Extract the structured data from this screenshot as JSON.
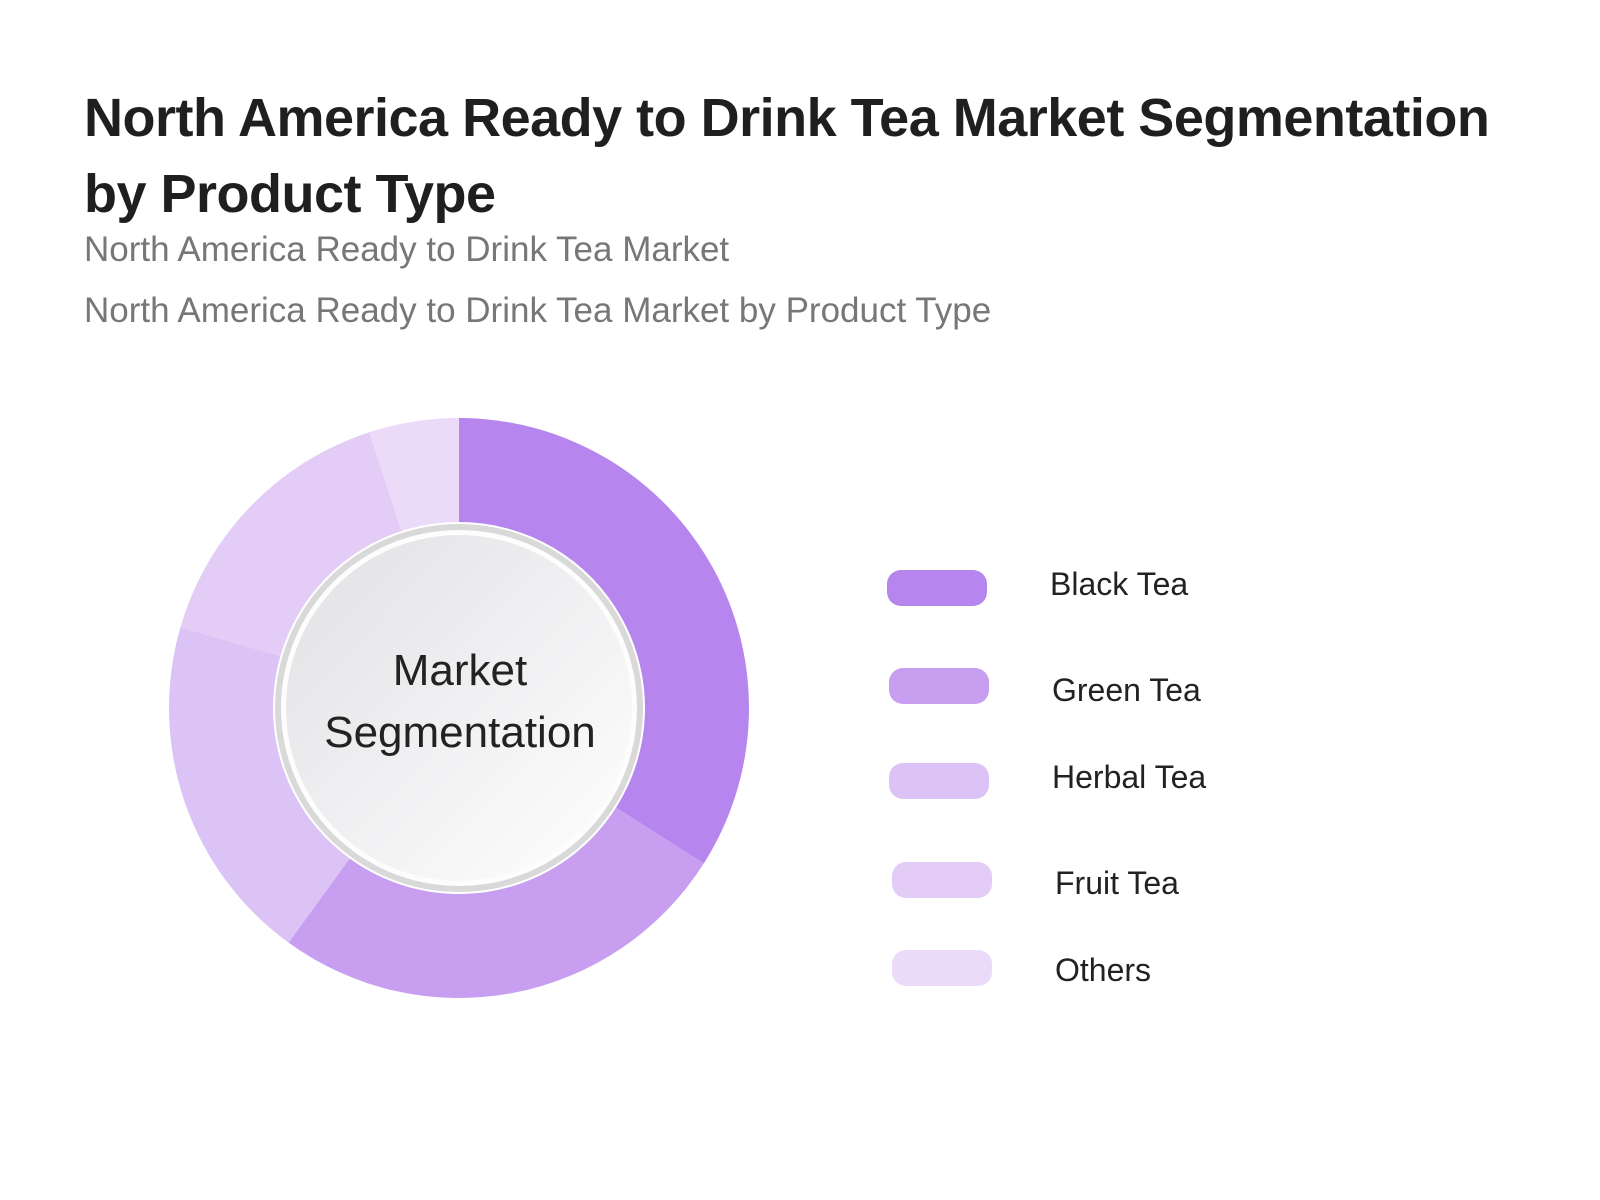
{
  "chart_data": {
    "type": "pie",
    "title": "North America Ready to Drink Tea Market Segmentation by Product Type",
    "subtitles": [
      "North America Ready to Drink Tea Market",
      "North America Ready to Drink Tea Market  by Product Type"
    ],
    "center_label": "Market Segmentation",
    "categories": [
      "Black Tea",
      "Green Tea",
      "Herbal Tea",
      "Fruit Tea",
      "Others"
    ],
    "values": [
      34.0,
      26.0,
      19.5,
      15.5,
      5.0
    ],
    "colors": [
      "#b685ed",
      "#c89ff0",
      "#dcc3f6",
      "#e3cdf7",
      "#ebdbf9"
    ],
    "legend_position": "right"
  }
}
